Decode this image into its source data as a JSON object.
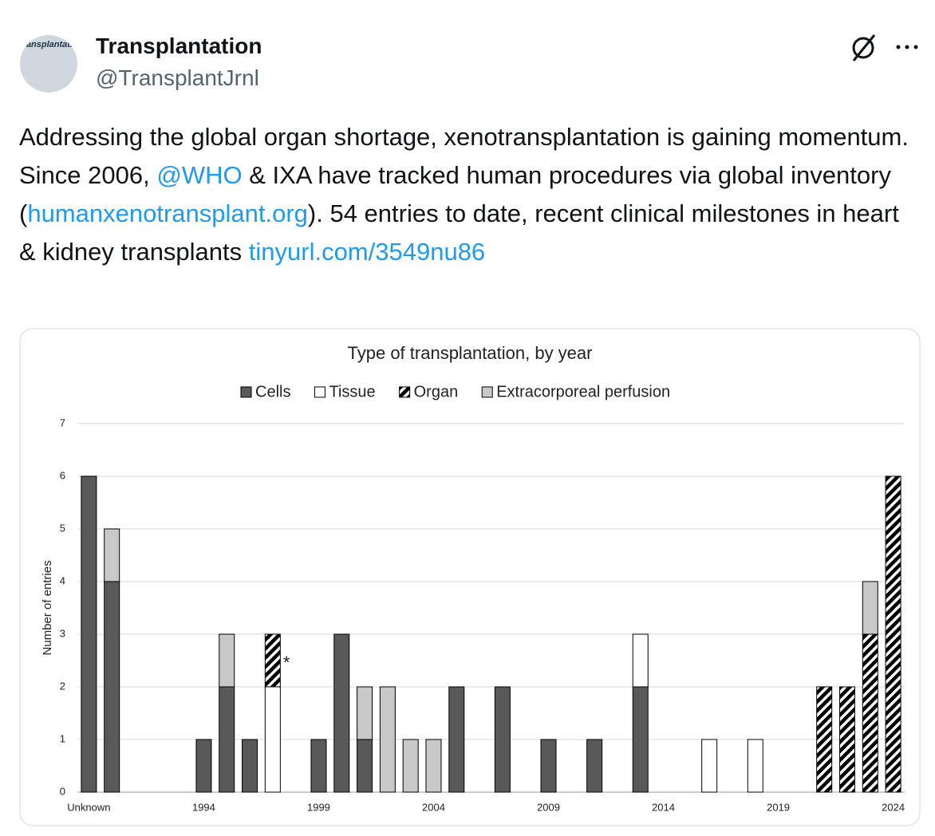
{
  "tweet": {
    "name": "Transplantation",
    "handle": "@TransplantJrnl",
    "avatar_text": "transplantation",
    "body": [
      {
        "text": "Addressing the global organ shortage, xenotransplantation is gaining momentum. Since 2006, "
      },
      {
        "text": "@WHO",
        "link": true
      },
      {
        "text": " & IXA have tracked human procedures via global inventory ("
      },
      {
        "text": "humanxenotransplant.org",
        "link": true
      },
      {
        "text": "). 54 entries to date, recent clinical milestones in heart & kidney transplants "
      },
      {
        "text": "tinyurl.com/3549nu86",
        "link": true
      }
    ]
  },
  "chart_data": {
    "type": "stacked_bar",
    "title": "Type of transplantation, by year",
    "ylabel": "Number of entries",
    "categories": [
      "Unknown",
      null,
      null,
      null,
      null,
      "1994",
      null,
      null,
      null,
      null,
      "1999",
      null,
      null,
      null,
      null,
      "2004",
      null,
      null,
      null,
      null,
      "2009",
      null,
      null,
      null,
      null,
      "2014",
      null,
      null,
      null,
      null,
      "2019",
      null,
      null,
      null,
      null,
      "2024"
    ],
    "series": [
      {
        "name": "Cells",
        "color": "#595959",
        "values": [
          6,
          4,
          0,
          0,
          0,
          1,
          2,
          1,
          0,
          0,
          1,
          3,
          1,
          0,
          0,
          0,
          2,
          0,
          2,
          0,
          1,
          0,
          1,
          0,
          2,
          0,
          0,
          0,
          0,
          0,
          0,
          0,
          0,
          0,
          0,
          0
        ]
      },
      {
        "name": "Tissue",
        "color": "#ffffff",
        "values": [
          0,
          0,
          0,
          0,
          0,
          0,
          0,
          0,
          2,
          0,
          0,
          0,
          0,
          0,
          0,
          0,
          0,
          0,
          0,
          0,
          0,
          0,
          0,
          0,
          1,
          0,
          0,
          1,
          0,
          1,
          0,
          0,
          0,
          0,
          0,
          0
        ]
      },
      {
        "name": "Organ",
        "color": "#000000",
        "pattern": "hatch",
        "values": [
          0,
          0,
          0,
          0,
          0,
          0,
          0,
          0,
          1,
          0,
          0,
          0,
          0,
          0,
          0,
          0,
          0,
          0,
          0,
          0,
          0,
          0,
          0,
          0,
          0,
          0,
          0,
          0,
          0,
          0,
          0,
          0,
          2,
          2,
          3,
          6
        ]
      },
      {
        "name": "Extracorporeal perfusion",
        "color": "#c8c8c8",
        "values": [
          0,
          1,
          0,
          0,
          0,
          0,
          1,
          0,
          0,
          0,
          0,
          0,
          1,
          2,
          1,
          1,
          0,
          0,
          0,
          0,
          0,
          0,
          0,
          0,
          0,
          0,
          0,
          0,
          0,
          0,
          0,
          0,
          0,
          0,
          1,
          0
        ]
      }
    ],
    "ylim": [
      0,
      7
    ],
    "yticks": [
      0,
      1,
      2,
      3,
      4,
      5,
      6,
      7
    ],
    "grid": true,
    "legend": "top",
    "annotation": "*"
  }
}
